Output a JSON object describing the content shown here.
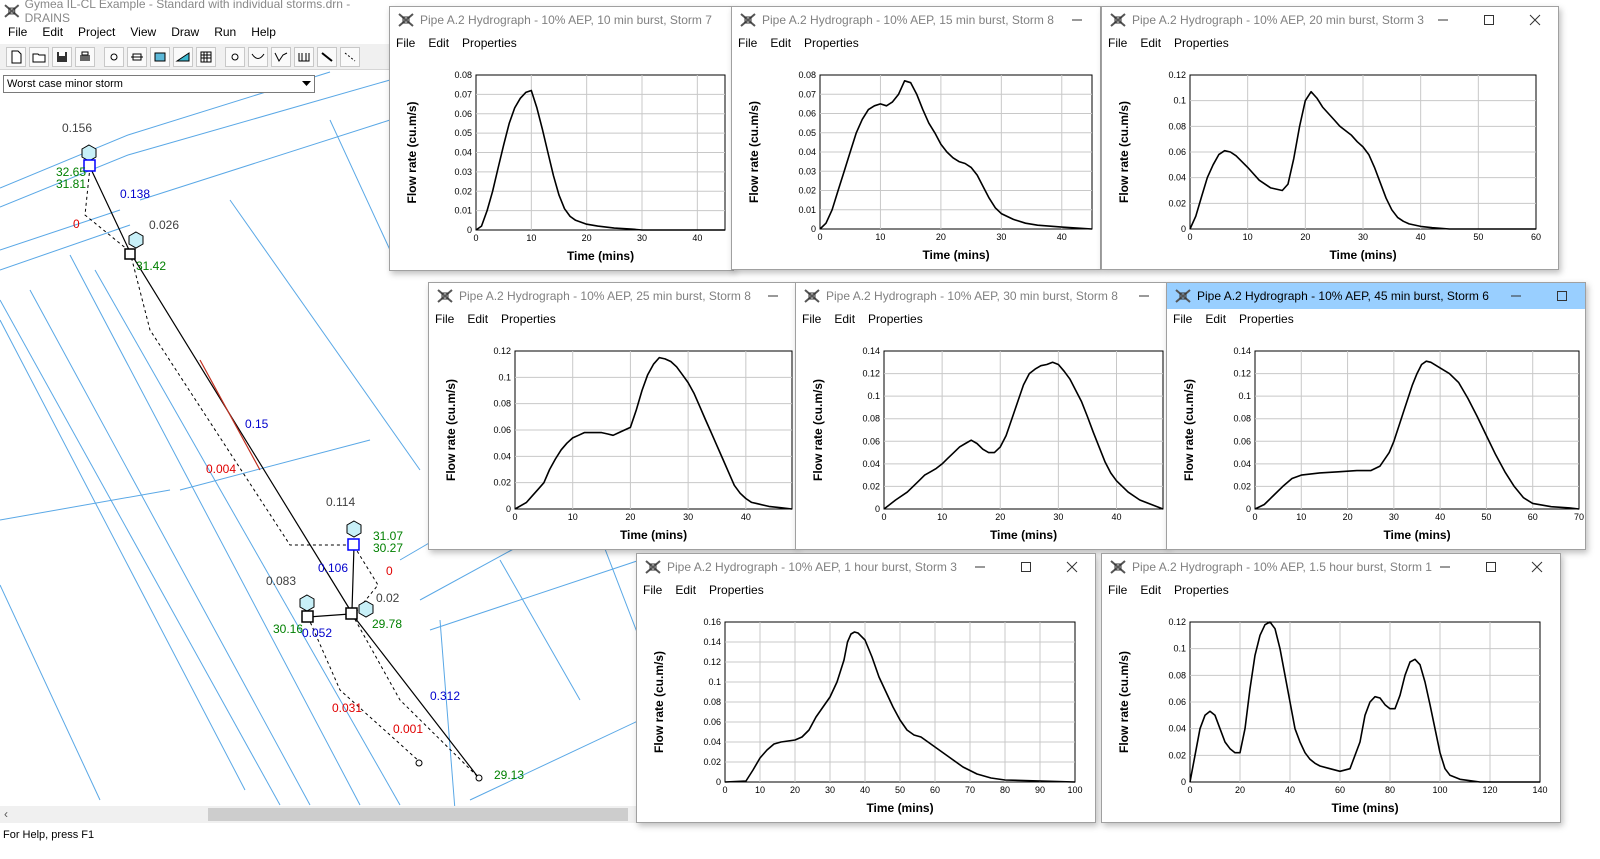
{
  "app": {
    "title": "Gymea IL-CL Example - Standard with individual storms.drn - DRAINS",
    "menu": [
      "File",
      "Edit",
      "Project",
      "View",
      "Draw",
      "Run",
      "Help"
    ],
    "toolbar_icons": [
      "new-file-icon",
      "open-folder-icon",
      "save-icon",
      "print-icon",
      "node-tool-icon",
      "pit-tool-icon",
      "detention-tool-icon",
      "catchment-tool-icon",
      "table-tool-icon",
      "circle-node-icon",
      "channel-icon",
      "overflow-icon",
      "multi-pipe-icon",
      "pipe-draw-icon",
      "link-draw-icon"
    ],
    "storm_select": "Worst case minor storm",
    "status": "For Help, press F1"
  },
  "network": {
    "labels": [
      {
        "text": "0.156",
        "color": "#404040"
      },
      {
        "text": "32.65",
        "color": "#008000"
      },
      {
        "text": "31.81",
        "color": "#008000"
      },
      {
        "text": "0.138",
        "color": "#0000cc"
      },
      {
        "text": "0",
        "color": "#e00000"
      },
      {
        "text": "0.026",
        "color": "#404040"
      },
      {
        "text": "31.42",
        "color": "#008000"
      },
      {
        "text": "0.15",
        "color": "#0000cc"
      },
      {
        "text": "0.004",
        "color": "#e00000"
      },
      {
        "text": "0.114",
        "color": "#404040"
      },
      {
        "text": "31.07",
        "color": "#008000"
      },
      {
        "text": "30.27",
        "color": "#008000"
      },
      {
        "text": "0.106",
        "color": "#0000cc"
      },
      {
        "text": "0",
        "color": "#e00000"
      },
      {
        "text": "0.083",
        "color": "#404040"
      },
      {
        "text": "0.02",
        "color": "#404040"
      },
      {
        "text": "30.16",
        "color": "#008000"
      },
      {
        "text": "0.052",
        "color": "#0000cc"
      },
      {
        "text": "29.78",
        "color": "#008000"
      },
      {
        "text": "0.312",
        "color": "#0000cc"
      },
      {
        "text": "0.031",
        "color": "#e00000"
      },
      {
        "text": "0.001",
        "color": "#e00000"
      },
      {
        "text": "29.13",
        "color": "#008000"
      }
    ]
  },
  "windows": [
    {
      "title": "Pipe A.2 Hydrograph - 10% AEP, 10 min burst, Storm 7",
      "menu": [
        "File",
        "Edit",
        "Properties"
      ],
      "active": false,
      "controls": [],
      "chart_data": {
        "type": "line",
        "xlabel": "Time (mins)",
        "ylabel": "Flow rate (cu.m/s)",
        "xlim": [
          0,
          45
        ],
        "ylim": [
          0,
          0.08
        ],
        "xticks": [
          "0",
          "10",
          "20",
          "30",
          "40"
        ],
        "yticks": [
          "0",
          "0.01",
          "0.02",
          "0.03",
          "0.04",
          "0.05",
          "0.06",
          "0.07",
          "0.08"
        ],
        "x": [
          0,
          1,
          2,
          3,
          4,
          5,
          6,
          7,
          8,
          9,
          10,
          11,
          12,
          13,
          14,
          15,
          16,
          17,
          18,
          20,
          22,
          25,
          28,
          30,
          35,
          40,
          45
        ],
        "y": [
          0,
          0.002,
          0.01,
          0.02,
          0.032,
          0.044,
          0.055,
          0.063,
          0.068,
          0.071,
          0.072,
          0.063,
          0.052,
          0.04,
          0.028,
          0.018,
          0.011,
          0.007,
          0.005,
          0.003,
          0.002,
          0.001,
          0.0005,
          0,
          0,
          0,
          0
        ]
      }
    },
    {
      "title": "Pipe A.2 Hydrograph - 10% AEP, 15 min burst, Storm 8",
      "menu": [
        "File",
        "Edit",
        "Properties"
      ],
      "active": false,
      "controls": [
        "minimize"
      ],
      "chart_data": {
        "type": "line",
        "xlabel": "Time (mins)",
        "ylabel": "Flow rate (cu.m/s)",
        "xlim": [
          0,
          45
        ],
        "ylim": [
          0,
          0.08
        ],
        "xticks": [
          "0",
          "10",
          "20",
          "30",
          "40"
        ],
        "yticks": [
          "0",
          "0.01",
          "0.02",
          "0.03",
          "0.04",
          "0.05",
          "0.06",
          "0.07",
          "0.08"
        ],
        "x": [
          0,
          1,
          2,
          3,
          4,
          5,
          6,
          7,
          8,
          9,
          10,
          11,
          12,
          13,
          14,
          15,
          16,
          17,
          18,
          19,
          20,
          21,
          22,
          23,
          24,
          25,
          26,
          27,
          28,
          29,
          30,
          32,
          34,
          36,
          40,
          45
        ],
        "y": [
          0,
          0.003,
          0.01,
          0.02,
          0.03,
          0.04,
          0.05,
          0.057,
          0.062,
          0.064,
          0.065,
          0.064,
          0.066,
          0.07,
          0.077,
          0.076,
          0.07,
          0.062,
          0.055,
          0.05,
          0.044,
          0.04,
          0.037,
          0.035,
          0.034,
          0.032,
          0.028,
          0.022,
          0.016,
          0.011,
          0.008,
          0.005,
          0.003,
          0.002,
          0.001,
          0
        ]
      }
    },
    {
      "title": "Pipe A.2 Hydrograph - 10% AEP, 20 min burst, Storm 3",
      "menu": [
        "File",
        "Edit",
        "Properties"
      ],
      "active": false,
      "controls": [
        "minimize",
        "maximize",
        "close"
      ],
      "chart_data": {
        "type": "line",
        "xlabel": "Time (mins)",
        "ylabel": "Flow rate (cu.m/s)",
        "xlim": [
          0,
          60
        ],
        "ylim": [
          0,
          0.12
        ],
        "xticks": [
          "0",
          "10",
          "20",
          "30",
          "40",
          "50",
          "60"
        ],
        "yticks": [
          "0",
          "0.02",
          "0.04",
          "0.06",
          "0.08",
          "0.1",
          "0.12"
        ],
        "x": [
          0,
          1,
          2,
          3,
          4,
          5,
          6,
          7,
          8,
          10,
          12,
          14,
          16,
          17,
          18,
          19,
          20,
          21,
          22,
          23,
          24,
          25,
          26,
          28,
          29,
          30,
          31,
          32,
          33,
          34,
          35,
          36,
          37,
          38,
          40,
          42,
          45,
          50,
          55,
          60
        ],
        "y": [
          0,
          0.01,
          0.025,
          0.04,
          0.05,
          0.058,
          0.061,
          0.06,
          0.057,
          0.048,
          0.038,
          0.032,
          0.03,
          0.035,
          0.055,
          0.08,
          0.1,
          0.107,
          0.102,
          0.095,
          0.09,
          0.085,
          0.08,
          0.073,
          0.068,
          0.064,
          0.058,
          0.048,
          0.036,
          0.024,
          0.015,
          0.009,
          0.006,
          0.004,
          0.002,
          0.001,
          0,
          0,
          0,
          0
        ]
      }
    },
    {
      "title": "Pipe A.2 Hydrograph - 10% AEP, 25 min burst, Storm 8",
      "menu": [
        "File",
        "Edit",
        "Properties"
      ],
      "active": false,
      "controls": [
        "minimize"
      ],
      "chart_data": {
        "type": "line",
        "xlabel": "Time (mins)",
        "ylabel": "Flow rate (cu.m/s)",
        "xlim": [
          0,
          48
        ],
        "ylim": [
          0,
          0.12
        ],
        "xticks": [
          "0",
          "10",
          "20",
          "30",
          "40"
        ],
        "yticks": [
          "0",
          "0.02",
          "0.04",
          "0.06",
          "0.08",
          "0.1",
          "0.12"
        ],
        "x": [
          0,
          2,
          3,
          4,
          5,
          6,
          7,
          8,
          9,
          10,
          11,
          12,
          13,
          14,
          15,
          16,
          17,
          18,
          19,
          20,
          21,
          22,
          23,
          24,
          25,
          26,
          27,
          28,
          29,
          30,
          31,
          32,
          33,
          34,
          35,
          36,
          37,
          38,
          39,
          40,
          41,
          42,
          44,
          46,
          48
        ],
        "y": [
          0,
          0.005,
          0.01,
          0.015,
          0.02,
          0.03,
          0.038,
          0.045,
          0.05,
          0.054,
          0.056,
          0.058,
          0.058,
          0.058,
          0.058,
          0.057,
          0.056,
          0.058,
          0.06,
          0.062,
          0.075,
          0.09,
          0.102,
          0.11,
          0.115,
          0.114,
          0.112,
          0.108,
          0.102,
          0.096,
          0.088,
          0.078,
          0.068,
          0.058,
          0.048,
          0.038,
          0.028,
          0.018,
          0.012,
          0.008,
          0.005,
          0.004,
          0.002,
          0.001,
          0
        ]
      }
    },
    {
      "title": "Pipe A.2 Hydrograph - 10% AEP, 30 min burst, Storm 8",
      "menu": [
        "File",
        "Edit",
        "Properties"
      ],
      "active": false,
      "controls": [
        "minimize"
      ],
      "chart_data": {
        "type": "line",
        "xlabel": "Time (mins)",
        "ylabel": "Flow rate (cu.m/s)",
        "xlim": [
          0,
          48
        ],
        "ylim": [
          0,
          0.14
        ],
        "xticks": [
          "0",
          "10",
          "20",
          "30",
          "40"
        ],
        "yticks": [
          "0",
          "0.02",
          "0.04",
          "0.06",
          "0.08",
          "0.1",
          "0.12",
          "0.14"
        ],
        "x": [
          0,
          2,
          4,
          6,
          7,
          8,
          9,
          10,
          11,
          12,
          13,
          14,
          15,
          16,
          17,
          18,
          19,
          20,
          21,
          22,
          23,
          24,
          25,
          26,
          27,
          28,
          29,
          30,
          31,
          32,
          33,
          34,
          35,
          36,
          37,
          38,
          39,
          40,
          42,
          44,
          46,
          48
        ],
        "y": [
          0,
          0.008,
          0.015,
          0.025,
          0.03,
          0.033,
          0.036,
          0.04,
          0.045,
          0.05,
          0.055,
          0.058,
          0.061,
          0.058,
          0.053,
          0.05,
          0.05,
          0.055,
          0.065,
          0.08,
          0.095,
          0.11,
          0.12,
          0.124,
          0.127,
          0.128,
          0.13,
          0.128,
          0.122,
          0.115,
          0.105,
          0.095,
          0.082,
          0.068,
          0.055,
          0.042,
          0.032,
          0.025,
          0.015,
          0.008,
          0.004,
          0
        ]
      }
    },
    {
      "title": "Pipe A.2 Hydrograph - 10% AEP, 45 min burst, Storm 6",
      "menu": [
        "File",
        "Edit",
        "Properties"
      ],
      "active": true,
      "controls": [
        "minimize",
        "maximize"
      ],
      "chart_data": {
        "type": "line",
        "xlabel": "Time (mins)",
        "ylabel": "Flow rate (cu.m/s)",
        "xlim": [
          0,
          70
        ],
        "ylim": [
          0,
          0.14
        ],
        "xticks": [
          "0",
          "10",
          "20",
          "30",
          "40",
          "50",
          "60",
          "70"
        ],
        "yticks": [
          "0",
          "0.02",
          "0.04",
          "0.06",
          "0.08",
          "0.1",
          "0.12",
          "0.14"
        ],
        "x": [
          0,
          2,
          4,
          6,
          8,
          10,
          14,
          18,
          22,
          25,
          27,
          29,
          30,
          32,
          34,
          35,
          36,
          37,
          38,
          40,
          42,
          44,
          46,
          48,
          50,
          52,
          54,
          56,
          58,
          60,
          64,
          68,
          70
        ],
        "y": [
          0,
          0.004,
          0.012,
          0.02,
          0.027,
          0.03,
          0.032,
          0.033,
          0.034,
          0.034,
          0.038,
          0.05,
          0.06,
          0.085,
          0.11,
          0.12,
          0.128,
          0.131,
          0.13,
          0.125,
          0.12,
          0.112,
          0.098,
          0.082,
          0.065,
          0.048,
          0.033,
          0.02,
          0.01,
          0.005,
          0.002,
          0.001,
          0
        ]
      }
    },
    {
      "title": "Pipe A.2 Hydrograph - 10% AEP, 1 hour burst, Storm 3",
      "menu": [
        "File",
        "Edit",
        "Properties"
      ],
      "active": false,
      "controls": [
        "minimize",
        "maximize",
        "close"
      ],
      "chart_data": {
        "type": "line",
        "xlabel": "Time (mins)",
        "ylabel": "Flow rate (cu.m/s)",
        "xlim": [
          0,
          100
        ],
        "ylim": [
          0,
          0.16
        ],
        "xticks": [
          "0",
          "10",
          "20",
          "30",
          "40",
          "50",
          "60",
          "70",
          "80",
          "90",
          "100"
        ],
        "yticks": [
          "0",
          "0.02",
          "0.04",
          "0.06",
          "0.08",
          "0.1",
          "0.12",
          "0.14",
          "0.16"
        ],
        "x": [
          0,
          6,
          8,
          10,
          12,
          14,
          16,
          18,
          20,
          22,
          24,
          26,
          28,
          30,
          32,
          34,
          35,
          36,
          37,
          38,
          40,
          42,
          44,
          46,
          48,
          50,
          52,
          54,
          56,
          58,
          60,
          64,
          68,
          72,
          76,
          80,
          100
        ],
        "y": [
          0,
          0.001,
          0.012,
          0.024,
          0.032,
          0.038,
          0.04,
          0.041,
          0.042,
          0.045,
          0.052,
          0.065,
          0.075,
          0.085,
          0.1,
          0.122,
          0.14,
          0.148,
          0.15,
          0.149,
          0.142,
          0.125,
          0.105,
          0.09,
          0.075,
          0.062,
          0.052,
          0.047,
          0.045,
          0.04,
          0.035,
          0.025,
          0.015,
          0.008,
          0.004,
          0.002,
          0
        ]
      }
    },
    {
      "title": "Pipe A.2 Hydrograph - 10% AEP, 1.5 hour burst, Storm 1",
      "menu": [
        "File",
        "Edit",
        "Properties"
      ],
      "active": false,
      "controls": [
        "minimize",
        "maximize",
        "close"
      ],
      "chart_data": {
        "type": "line",
        "xlabel": "Time (mins)",
        "ylabel": "Flow rate (cu.m/s)",
        "xlim": [
          0,
          140
        ],
        "ylim": [
          0,
          0.12
        ],
        "xticks": [
          "0",
          "20",
          "40",
          "60",
          "80",
          "100",
          "120",
          "140"
        ],
        "yticks": [
          "0",
          "0.02",
          "0.04",
          "0.06",
          "0.08",
          "0.1",
          "0.12"
        ],
        "x": [
          0,
          2,
          4,
          6,
          8,
          10,
          12,
          14,
          16,
          18,
          20,
          22,
          24,
          26,
          28,
          30,
          32,
          34,
          36,
          38,
          40,
          42,
          44,
          46,
          48,
          50,
          52,
          56,
          60,
          64,
          68,
          70,
          72,
          74,
          76,
          78,
          80,
          82,
          84,
          86,
          88,
          90,
          92,
          94,
          96,
          98,
          100,
          102,
          104,
          108,
          112,
          116,
          140
        ],
        "y": [
          0,
          0.02,
          0.04,
          0.05,
          0.053,
          0.05,
          0.04,
          0.03,
          0.025,
          0.022,
          0.022,
          0.04,
          0.07,
          0.095,
          0.11,
          0.118,
          0.12,
          0.115,
          0.1,
          0.08,
          0.06,
          0.04,
          0.03,
          0.022,
          0.017,
          0.014,
          0.012,
          0.01,
          0.008,
          0.01,
          0.03,
          0.05,
          0.06,
          0.064,
          0.063,
          0.058,
          0.055,
          0.055,
          0.065,
          0.08,
          0.09,
          0.092,
          0.088,
          0.075,
          0.058,
          0.04,
          0.022,
          0.01,
          0.005,
          0.002,
          0.001,
          0,
          0
        ]
      }
    }
  ]
}
